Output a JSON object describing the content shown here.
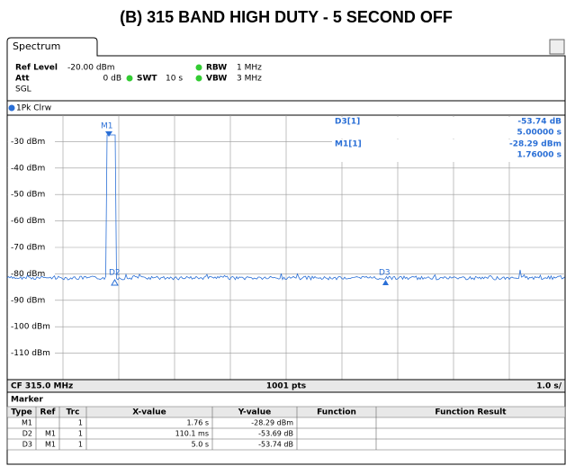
{
  "title": "(B) 315 BAND HIGH DUTY - 5 SECOND OFF",
  "tab": "Spectrum",
  "settings": {
    "ref_level_label": "Ref Level",
    "ref_level": "-20.00 dBm",
    "rbw_label": "RBW",
    "rbw": "1 MHz",
    "att_label": "Att",
    "att": "0 dB",
    "swt_label": "SWT",
    "swt": "10 s",
    "vbw_label": "VBW",
    "vbw": "3 MHz",
    "mode": "SGL"
  },
  "trace_label": "1Pk Clrw",
  "y_labels": [
    "-30 dBm",
    "-40 dBm",
    "-50 dBm",
    "-60 dBm",
    "-70 dBm",
    "-80 dBm",
    "-90 dBm",
    "-100 dBm",
    "-110 dBm"
  ],
  "plot_markers": [
    "M1",
    "D2",
    "D3"
  ],
  "readout": [
    {
      "name": "D3[1]",
      "lines": [
        "-53.74 dB",
        "5.00000 s"
      ]
    },
    {
      "name": "M1[1]",
      "lines": [
        "-28.29 dBm",
        "1.76000 s"
      ]
    }
  ],
  "footer": {
    "left": "CF 315.0 MHz",
    "center": "1001 pts",
    "right": "1.0 s/"
  },
  "marker_table": {
    "title": "Marker",
    "columns": [
      "Type",
      "Ref",
      "Trc",
      "X-value",
      "Y-value",
      "Function",
      "Function Result"
    ],
    "rows": [
      [
        "M1",
        "",
        "1",
        "1.76 s",
        "-28.29 dBm",
        "",
        ""
      ],
      [
        "D2",
        "M1",
        "1",
        "110.1 ms",
        "-53.69 dB",
        "",
        ""
      ],
      [
        "D3",
        "M1",
        "1",
        "5.0 s",
        "-53.74 dB",
        "",
        ""
      ]
    ]
  }
}
